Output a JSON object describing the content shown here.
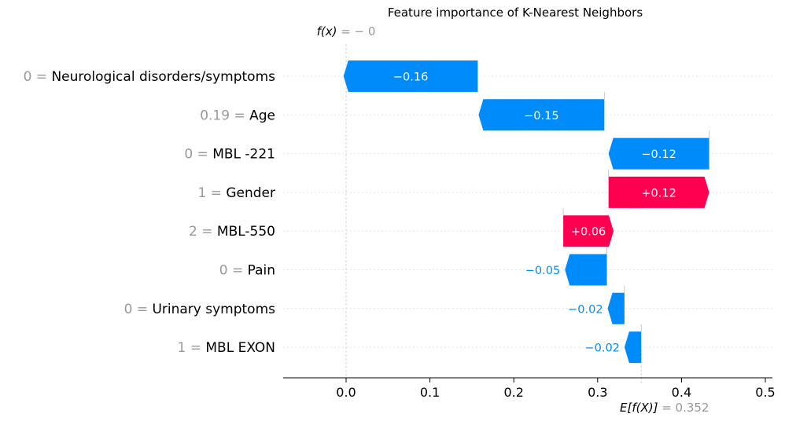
{
  "chart_data": {
    "type": "waterfall",
    "title": "Feature importance of K-Nearest Neighbors",
    "fx_label": "f(x)",
    "fx_value": "= − 0",
    "expected_label": "E[f(X)]",
    "expected_value_text": "= 0.352",
    "base_value": 0.352,
    "final_value": 0.0,
    "xlim": [
      -0.073,
      0.505
    ],
    "xticks": [
      0.0,
      0.1,
      0.2,
      0.3,
      0.4,
      0.5
    ],
    "xtick_labels": [
      "0.0",
      "0.1",
      "0.2",
      "0.3",
      "0.4",
      "0.5"
    ],
    "grid": "dotted horizontal per feature",
    "positive_color": "#ff0051",
    "negative_color": "#008bfb",
    "features": [
      {
        "value": "0",
        "name": "Neurological disorders/symptoms",
        "contribution": -0.16,
        "label": "−0.16",
        "start": 0.157
      },
      {
        "value": "0.19",
        "name": "Age",
        "contribution": -0.15,
        "label": "−0.15",
        "start": 0.308
      },
      {
        "value": "0",
        "name": "MBL -221",
        "contribution": -0.12,
        "label": "−0.12",
        "start": 0.433
      },
      {
        "value": "1",
        "name": "Gender",
        "contribution": 0.12,
        "label": "+0.12",
        "start": 0.313
      },
      {
        "value": "2",
        "name": "MBL-550",
        "contribution": 0.06,
        "label": "+0.06",
        "start": 0.259
      },
      {
        "value": "0",
        "name": "Pain",
        "contribution": -0.05,
        "label": "−0.05",
        "start": 0.311
      },
      {
        "value": "0",
        "name": "Urinary symptoms",
        "contribution": -0.02,
        "label": "−0.02",
        "start": 0.332
      },
      {
        "value": "1",
        "name": "MBL EXON",
        "contribution": -0.02,
        "label": "−0.02",
        "start": 0.352
      }
    ]
  }
}
